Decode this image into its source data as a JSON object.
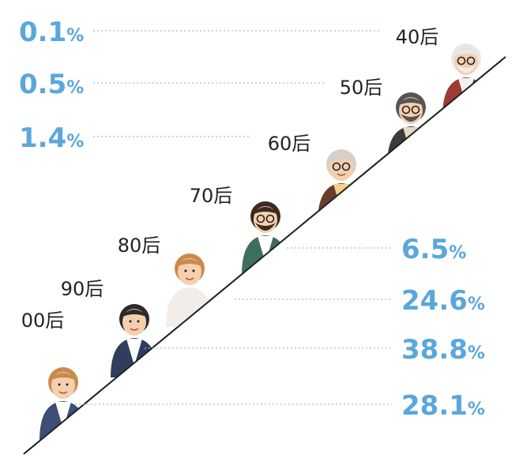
{
  "colors": {
    "accent": "#5aa7dc",
    "label": "#222222",
    "diagonal": "#222222"
  },
  "chart_data": {
    "type": "bar",
    "categories": [
      "40后",
      "50后",
      "60后",
      "70后",
      "80后",
      "90后",
      "00后"
    ],
    "values": [
      0.1,
      0.5,
      1.4,
      6.5,
      24.6,
      38.8,
      28.1
    ],
    "value_labels": [
      "0.1%",
      "0.5%",
      "1.4%",
      "6.5%",
      "24.6%",
      "38.8%",
      "28.1%"
    ],
    "unit": "%",
    "label_sides": [
      "left",
      "left",
      "left",
      "right",
      "right",
      "right",
      "right"
    ],
    "figures": [
      "elderly-man-icon",
      "older-man-icon",
      "older-woman-icon",
      "middle-aged-man-icon",
      "young-woman-icon",
      "young-man-icon",
      "girl-icon"
    ]
  }
}
